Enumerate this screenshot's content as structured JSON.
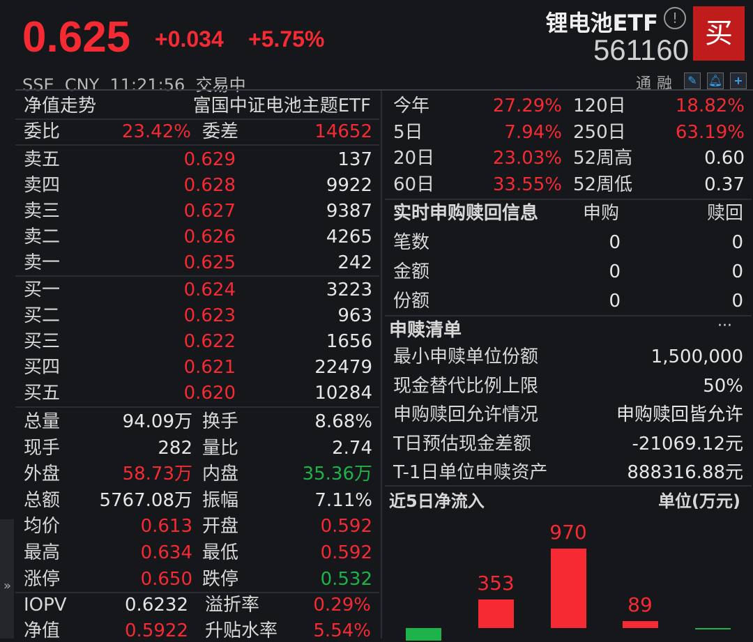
{
  "header": {
    "price": "0.625",
    "change": "+0.034",
    "change_pct": "+5.75%",
    "name": "锂电池ETF",
    "info_icon": "!",
    "code": "561160",
    "buy_label": "买",
    "status": "SSE  CNY  11:21:56  交易中",
    "tags": "通融",
    "icons": [
      "edit-icon",
      "bell-icon",
      "plus-icon"
    ]
  },
  "left": {
    "nav_label": "净值走势",
    "fund_name": "富国中证电池主题ETF",
    "wei": {
      "wb_label": "委比",
      "wb_value": "23.42%",
      "wc_label": "委差",
      "wc_value": "14652"
    },
    "asks": [
      {
        "label": "卖五",
        "price": "0.629",
        "volume": "137"
      },
      {
        "label": "卖四",
        "price": "0.628",
        "volume": "9922"
      },
      {
        "label": "卖三",
        "price": "0.627",
        "volume": "9387"
      },
      {
        "label": "卖二",
        "price": "0.626",
        "volume": "4265"
      },
      {
        "label": "卖一",
        "price": "0.625",
        "volume": "242"
      }
    ],
    "bids": [
      {
        "label": "买一",
        "price": "0.624",
        "volume": "3223"
      },
      {
        "label": "买二",
        "price": "0.623",
        "volume": "963"
      },
      {
        "label": "买三",
        "price": "0.622",
        "volume": "1656"
      },
      {
        "label": "买四",
        "price": "0.621",
        "volume": "22479"
      },
      {
        "label": "买五",
        "price": "0.620",
        "volume": "10284"
      }
    ],
    "stats": [
      {
        "l1": "总量",
        "v1": "94.09万",
        "c1": "white",
        "l2": "换手",
        "v2": "8.68%",
        "c2": "white"
      },
      {
        "l1": "现手",
        "v1": "282",
        "c1": "white",
        "l2": "量比",
        "v2": "2.74",
        "c2": "white"
      },
      {
        "l1": "外盘",
        "v1": "58.73万",
        "c1": "red",
        "l2": "内盘",
        "v2": "35.36万",
        "c2": "green"
      },
      {
        "l1": "总额",
        "v1": "5767.08万",
        "c1": "white",
        "l2": "振幅",
        "v2": "7.11%",
        "c2": "white"
      },
      {
        "l1": "均价",
        "v1": "0.613",
        "c1": "red",
        "l2": "开盘",
        "v2": "0.592",
        "c2": "red"
      },
      {
        "l1": "最高",
        "v1": "0.634",
        "c1": "red",
        "l2": "最低",
        "v2": "0.592",
        "c2": "red"
      },
      {
        "l1": "涨停",
        "v1": "0.650",
        "c1": "red",
        "l2": "跌停",
        "v2": "0.532",
        "c2": "green"
      }
    ],
    "iopv": [
      {
        "l1": "IOPV",
        "v1": "0.6232",
        "c1": "white",
        "l2": "溢折率",
        "v2": "0.29%",
        "c2": "red"
      },
      {
        "l1": "净值",
        "v1": "0.5922",
        "c1": "red",
        "l2": "升贴水率",
        "v2": "5.54%",
        "c2": "red"
      }
    ],
    "expand_icon": "»"
  },
  "right": {
    "perf": [
      {
        "l1": "今年",
        "v1": "27.29%",
        "c1": "red",
        "l2": "120日",
        "v2": "18.82%",
        "c2": "red"
      },
      {
        "l1": "5日",
        "v1": "7.94%",
        "c1": "red",
        "l2": "250日",
        "v2": "63.19%",
        "c2": "red"
      },
      {
        "l1": "20日",
        "v1": "23.03%",
        "c1": "red",
        "l2": "52周高",
        "v2": "0.60",
        "c2": "white"
      },
      {
        "l1": "60日",
        "v1": "33.55%",
        "c1": "red",
        "l2": "52周低",
        "v2": "0.37",
        "c2": "white"
      }
    ],
    "realtime": {
      "title": "实时申购赎回信息",
      "col1": "申购",
      "col2": "赎回",
      "rows": [
        {
          "label": "笔数",
          "v1": "0",
          "v2": "0"
        },
        {
          "label": "金额",
          "v1": "0",
          "v2": "0"
        },
        {
          "label": "份额",
          "v1": "0",
          "v2": "0"
        }
      ]
    },
    "list": {
      "title": "申赎清单",
      "more": "···",
      "rows": [
        {
          "label": "最小申赎单位份额",
          "value": "1,500,000"
        },
        {
          "label": "现金替代比例上限",
          "value": "50%"
        },
        {
          "label": "申购赎回允许情况",
          "value": "申购赎回皆允许"
        },
        {
          "label": "T日预估现金差额",
          "value": "-21069.12元"
        },
        {
          "label": "T-1日单位申赎资产",
          "value": "888316.88元"
        }
      ]
    },
    "flow": {
      "title": "近5日净流入",
      "unit": "单位(万元)"
    }
  },
  "colors": {
    "up": "#f52a33",
    "down": "#1db34a",
    "bg": "#15171b",
    "buy": "#c01c1c"
  },
  "chart_data": {
    "type": "bar",
    "title": "近5日净流入",
    "unit": "单位(万元)",
    "values": [
      -150,
      353,
      970,
      89,
      -2
    ],
    "labels": [
      "",
      "353",
      "970",
      "89",
      ""
    ],
    "colors": [
      "#1db34a",
      "#f52a33",
      "#f52a33",
      "#f52a33",
      "#1db34a"
    ]
  }
}
